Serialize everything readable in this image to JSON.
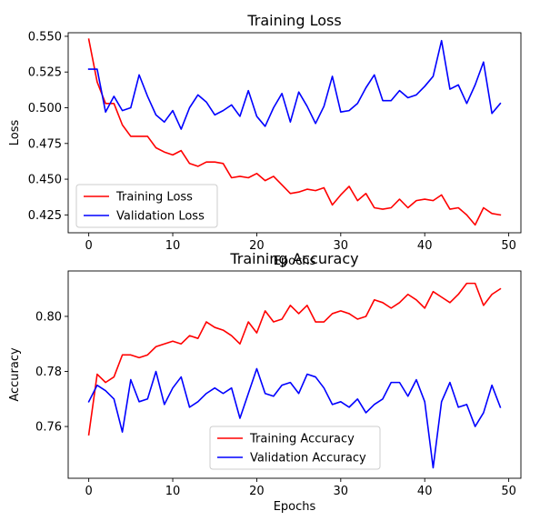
{
  "chart_data": [
    {
      "type": "line",
      "title": "Training Loss",
      "xlabel": "Epochs",
      "ylabel": "Loss",
      "xlim": [
        -2.45,
        51.45
      ],
      "ylim": [
        0.4125,
        0.5525
      ],
      "xticks": [
        0,
        10,
        20,
        30,
        40,
        50
      ],
      "yticks": [
        0.425,
        0.45,
        0.475,
        0.5,
        0.525,
        0.55
      ],
      "ytick_labels": [
        "0.425",
        "0.450",
        "0.475",
        "0.500",
        "0.525",
        "0.550"
      ],
      "legend_position": "lower-left",
      "x": [
        0,
        1,
        2,
        3,
        4,
        5,
        6,
        7,
        8,
        9,
        10,
        11,
        12,
        13,
        14,
        15,
        16,
        17,
        18,
        19,
        20,
        21,
        22,
        23,
        24,
        25,
        26,
        27,
        28,
        29,
        30,
        31,
        32,
        33,
        34,
        35,
        36,
        37,
        38,
        39,
        40,
        41,
        42,
        43,
        44,
        45,
        46,
        47,
        48,
        49
      ],
      "series": [
        {
          "name": "Training Loss",
          "color": "#ff0000",
          "values": [
            0.548,
            0.518,
            0.503,
            0.503,
            0.488,
            0.48,
            0.48,
            0.48,
            0.472,
            0.469,
            0.467,
            0.47,
            0.461,
            0.459,
            0.462,
            0.462,
            0.461,
            0.451,
            0.452,
            0.451,
            0.454,
            0.449,
            0.452,
            0.446,
            0.44,
            0.441,
            0.443,
            0.442,
            0.444,
            0.432,
            0.439,
            0.445,
            0.435,
            0.44,
            0.43,
            0.429,
            0.43,
            0.436,
            0.43,
            0.435,
            0.436,
            0.435,
            0.439,
            0.429,
            0.43,
            0.425,
            0.418,
            0.43,
            0.426,
            0.425
          ]
        },
        {
          "name": "Validation Loss",
          "color": "#0000ff",
          "values": [
            0.527,
            0.527,
            0.497,
            0.508,
            0.498,
            0.5,
            0.523,
            0.508,
            0.495,
            0.49,
            0.498,
            0.485,
            0.5,
            0.509,
            0.504,
            0.495,
            0.498,
            0.502,
            0.494,
            0.512,
            0.494,
            0.487,
            0.5,
            0.51,
            0.49,
            0.511,
            0.501,
            0.489,
            0.501,
            0.522,
            0.497,
            0.498,
            0.503,
            0.514,
            0.523,
            0.505,
            0.505,
            0.512,
            0.507,
            0.509,
            0.515,
            0.522,
            0.547,
            0.513,
            0.516,
            0.503,
            0.516,
            0.532,
            0.496,
            0.503
          ]
        }
      ]
    },
    {
      "type": "line",
      "title": "Training Accuracy",
      "xlabel": "Epochs",
      "ylabel": "Accuracy",
      "xlim": [
        -2.45,
        51.45
      ],
      "ylim": [
        0.7412,
        0.8165
      ],
      "xticks": [
        0,
        10,
        20,
        30,
        40,
        50
      ],
      "yticks": [
        0.76,
        0.78,
        0.8
      ],
      "ytick_labels": [
        "0.76",
        "0.78",
        "0.80"
      ],
      "legend_position": "lower-center",
      "x": [
        0,
        1,
        2,
        3,
        4,
        5,
        6,
        7,
        8,
        9,
        10,
        11,
        12,
        13,
        14,
        15,
        16,
        17,
        18,
        19,
        20,
        21,
        22,
        23,
        24,
        25,
        26,
        27,
        28,
        29,
        30,
        31,
        32,
        33,
        34,
        35,
        36,
        37,
        38,
        39,
        40,
        41,
        42,
        43,
        44,
        45,
        46,
        47,
        48,
        49
      ],
      "series": [
        {
          "name": "Training Accuracy",
          "color": "#ff0000",
          "values": [
            0.757,
            0.779,
            0.776,
            0.778,
            0.786,
            0.786,
            0.785,
            0.786,
            0.789,
            0.79,
            0.791,
            0.79,
            0.793,
            0.792,
            0.798,
            0.796,
            0.795,
            0.793,
            0.79,
            0.798,
            0.794,
            0.802,
            0.798,
            0.799,
            0.804,
            0.801,
            0.804,
            0.798,
            0.798,
            0.801,
            0.802,
            0.801,
            0.799,
            0.8,
            0.806,
            0.805,
            0.803,
            0.805,
            0.808,
            0.806,
            0.803,
            0.809,
            0.807,
            0.805,
            0.808,
            0.812,
            0.812,
            0.804,
            0.808,
            0.81
          ]
        },
        {
          "name": "Validation Accuracy",
          "color": "#0000ff",
          "values": [
            0.769,
            0.775,
            0.773,
            0.77,
            0.758,
            0.777,
            0.769,
            0.77,
            0.78,
            0.768,
            0.774,
            0.778,
            0.767,
            0.769,
            0.772,
            0.774,
            0.772,
            0.774,
            0.763,
            0.772,
            0.781,
            0.772,
            0.771,
            0.775,
            0.776,
            0.772,
            0.779,
            0.778,
            0.774,
            0.768,
            0.769,
            0.767,
            0.77,
            0.765,
            0.768,
            0.77,
            0.776,
            0.776,
            0.771,
            0.777,
            0.769,
            0.745,
            0.769,
            0.776,
            0.767,
            0.768,
            0.76,
            0.765,
            0.775,
            0.767
          ]
        }
      ]
    }
  ]
}
